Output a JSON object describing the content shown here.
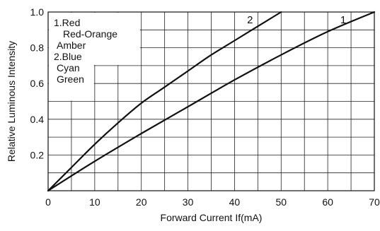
{
  "chart_data": {
    "type": "line",
    "title": "",
    "xlabel": "Forward Current If(mA)",
    "ylabel": "Relative Luminous Intensity",
    "xlim": [
      0,
      70
    ],
    "ylim": [
      0,
      1.0
    ],
    "x_ticks": [
      "0",
      "10",
      "20",
      "30",
      "40",
      "50",
      "60",
      "70"
    ],
    "y_ticks": [
      "0.2",
      "0.4",
      "0.6",
      "0.8",
      "1.0"
    ],
    "grid": true,
    "series": [
      {
        "name": "2",
        "x": [
          0,
          5,
          10,
          15,
          20,
          25,
          30,
          35,
          40,
          45,
          50
        ],
        "y": [
          0,
          0.13,
          0.26,
          0.38,
          0.49,
          0.58,
          0.67,
          0.76,
          0.84,
          0.92,
          1.0
        ]
      },
      {
        "name": "1",
        "x": [
          0,
          10,
          20,
          30,
          40,
          50,
          60,
          70
        ],
        "y": [
          0,
          0.165,
          0.32,
          0.47,
          0.62,
          0.76,
          0.89,
          1.0
        ]
      }
    ],
    "legend": {
      "placement": "top-left",
      "groups": [
        {
          "header": "1.Red",
          "lines": [
            "Red-Orange",
            "Amber"
          ]
        },
        {
          "header": "2.Blue",
          "lines": [
            "Cyan",
            "Green"
          ]
        }
      ]
    }
  }
}
